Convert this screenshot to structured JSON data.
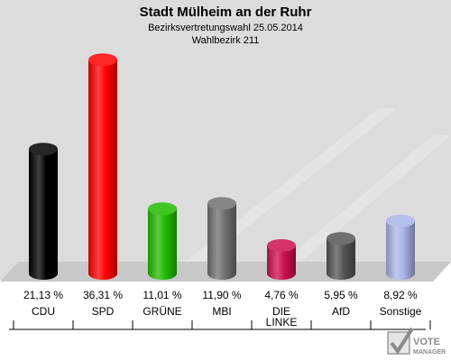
{
  "header": {
    "title": "Stadt Mülheim an der Ruhr",
    "subtitle": "Bezirksvertretungswahl 25.05.2014",
    "district": "Wahlbezirk 211"
  },
  "chart_data": {
    "type": "bar",
    "title": "Stadt Mülheim an der Ruhr",
    "subtitle": "Bezirksvertretungswahl 25.05.2014",
    "categories": [
      "CDU",
      "SPD",
      "GRÜNE",
      "MBI",
      "DIE LINKE",
      "AfD",
      "Sonstige"
    ],
    "category_lines": [
      [
        "CDU"
      ],
      [
        "SPD"
      ],
      [
        "GRÜNE"
      ],
      [
        "MBI"
      ],
      [
        "DIE",
        "LINKE"
      ],
      [
        "AfD"
      ],
      [
        "Sonstige"
      ]
    ],
    "values": [
      21.13,
      36.31,
      11.01,
      11.9,
      4.76,
      5.95,
      8.92
    ],
    "value_labels": [
      "21,13 %",
      "36,31 %",
      "11,01 %",
      "11,90 %",
      "4,76 %",
      "5,95 %",
      "8,92 %"
    ],
    "colors": [
      "#000000",
      "#ff0000",
      "#22bb00",
      "#707070",
      "#cc1050",
      "#555555",
      "#a8b4e8"
    ],
    "ylim": [
      0,
      40
    ],
    "grid": false,
    "legend": "none"
  },
  "watermark": {
    "line1": "VOTE",
    "line2": "MANAGER"
  }
}
